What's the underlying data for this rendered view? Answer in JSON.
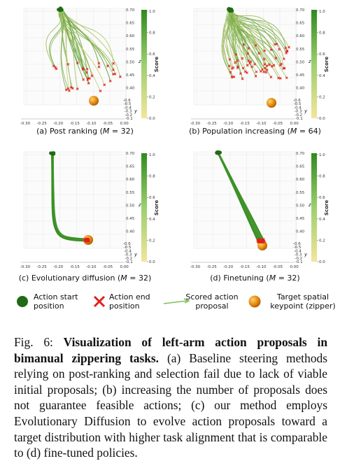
{
  "panels": [
    {
      "caption_pre": "(a) Post ranking (",
      "caption_math": "M",
      "caption_post": " = 32)"
    },
    {
      "caption_pre": "(b) Population increasing (",
      "caption_math": "M",
      "caption_post": " = 64)"
    },
    {
      "caption_pre": "(c) Evolutionary diffusion (",
      "caption_math": "M",
      "caption_post": " = 32)"
    },
    {
      "caption_pre": "(d) Finetuning (",
      "caption_math": "M",
      "caption_post": " = 32)"
    }
  ],
  "axes": {
    "x_ticks": [
      "-0.30",
      "-0.25",
      "-0.20",
      "-0.15",
      "-0.10",
      "-0.05",
      "0.00"
    ],
    "x_label": "x",
    "y_ticks": [
      "-0.6",
      "-0.5",
      "-0.4",
      "-0.3",
      "-0.2",
      "-0.1"
    ],
    "y_label": "y",
    "z_ticks": [
      "0.70",
      "0.65",
      "0.60",
      "0.55",
      "0.50",
      "0.45",
      "0.40"
    ],
    "z_label": "z",
    "colorbar_ticks": [
      "1.0",
      "0.8",
      "0.6",
      "0.4",
      "0.2",
      "0.0"
    ],
    "colorbar_label": "Score"
  },
  "colors": {
    "trajectory_high": "#2e8b1e",
    "trajectory_low": "#f3e59a",
    "start_marker": "#1f6b14",
    "end_marker": "#e0201a",
    "target_marker": "#e58a10"
  },
  "legend": {
    "start": "Action start\nposition",
    "end": "Action end\nposition",
    "scored": "Scored action\nproposal",
    "target": "Target spatial\nkeypoint (zipper)"
  },
  "caption": {
    "fig_label": "Fig. 6: ",
    "bold_title": "Visualization of left-arm action proposals in bimanual zippering tasks.",
    "body": " (a) Baseline steering methods relying on post-ranking and selection fail due to lack of viable initial proposals; (b) increasing the number of proposals does not guarantee feasible actions; (c) our method employs Evolutionary Diffusion to evolve action proposals toward a target distribution with higher task alignment that is comparable to (d) fine-tuned policies."
  }
}
